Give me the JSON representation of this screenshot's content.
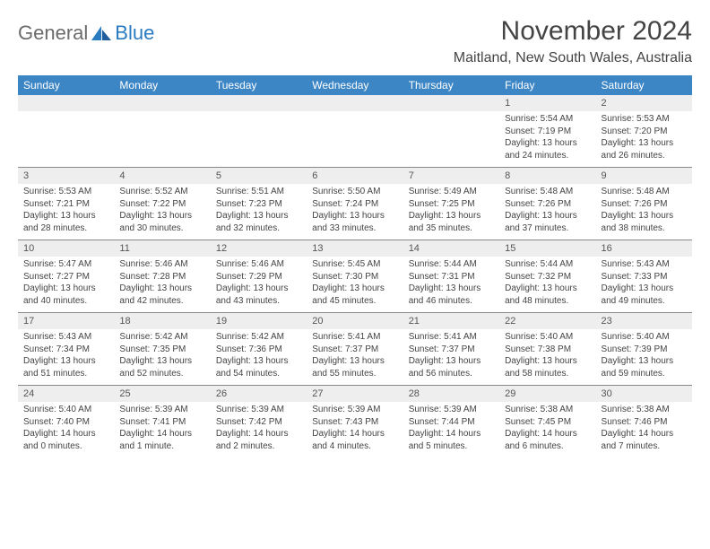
{
  "brand": {
    "text1": "General",
    "text2": "Blue"
  },
  "title": "November 2024",
  "location": "Maitland, New South Wales, Australia",
  "colors": {
    "header_bg": "#3d86c6",
    "header_text": "#ffffff",
    "daynum_bg": "#eeeeee",
    "text": "#444444",
    "logo_gray": "#6b6b6b",
    "logo_blue": "#2a7bbf",
    "rule": "#888888"
  },
  "dayNames": [
    "Sunday",
    "Monday",
    "Tuesday",
    "Wednesday",
    "Thursday",
    "Friday",
    "Saturday"
  ],
  "weeks": [
    {
      "nums": [
        "",
        "",
        "",
        "",
        "",
        "1",
        "2"
      ],
      "cells": [
        null,
        null,
        null,
        null,
        null,
        {
          "sr": "5:54 AM",
          "ss": "7:19 PM",
          "dl": "13 hours and 24 minutes."
        },
        {
          "sr": "5:53 AM",
          "ss": "7:20 PM",
          "dl": "13 hours and 26 minutes."
        }
      ]
    },
    {
      "nums": [
        "3",
        "4",
        "5",
        "6",
        "7",
        "8",
        "9"
      ],
      "cells": [
        {
          "sr": "5:53 AM",
          "ss": "7:21 PM",
          "dl": "13 hours and 28 minutes."
        },
        {
          "sr": "5:52 AM",
          "ss": "7:22 PM",
          "dl": "13 hours and 30 minutes."
        },
        {
          "sr": "5:51 AM",
          "ss": "7:23 PM",
          "dl": "13 hours and 32 minutes."
        },
        {
          "sr": "5:50 AM",
          "ss": "7:24 PM",
          "dl": "13 hours and 33 minutes."
        },
        {
          "sr": "5:49 AM",
          "ss": "7:25 PM",
          "dl": "13 hours and 35 minutes."
        },
        {
          "sr": "5:48 AM",
          "ss": "7:26 PM",
          "dl": "13 hours and 37 minutes."
        },
        {
          "sr": "5:48 AM",
          "ss": "7:26 PM",
          "dl": "13 hours and 38 minutes."
        }
      ]
    },
    {
      "nums": [
        "10",
        "11",
        "12",
        "13",
        "14",
        "15",
        "16"
      ],
      "cells": [
        {
          "sr": "5:47 AM",
          "ss": "7:27 PM",
          "dl": "13 hours and 40 minutes."
        },
        {
          "sr": "5:46 AM",
          "ss": "7:28 PM",
          "dl": "13 hours and 42 minutes."
        },
        {
          "sr": "5:46 AM",
          "ss": "7:29 PM",
          "dl": "13 hours and 43 minutes."
        },
        {
          "sr": "5:45 AM",
          "ss": "7:30 PM",
          "dl": "13 hours and 45 minutes."
        },
        {
          "sr": "5:44 AM",
          "ss": "7:31 PM",
          "dl": "13 hours and 46 minutes."
        },
        {
          "sr": "5:44 AM",
          "ss": "7:32 PM",
          "dl": "13 hours and 48 minutes."
        },
        {
          "sr": "5:43 AM",
          "ss": "7:33 PM",
          "dl": "13 hours and 49 minutes."
        }
      ]
    },
    {
      "nums": [
        "17",
        "18",
        "19",
        "20",
        "21",
        "22",
        "23"
      ],
      "cells": [
        {
          "sr": "5:43 AM",
          "ss": "7:34 PM",
          "dl": "13 hours and 51 minutes."
        },
        {
          "sr": "5:42 AM",
          "ss": "7:35 PM",
          "dl": "13 hours and 52 minutes."
        },
        {
          "sr": "5:42 AM",
          "ss": "7:36 PM",
          "dl": "13 hours and 54 minutes."
        },
        {
          "sr": "5:41 AM",
          "ss": "7:37 PM",
          "dl": "13 hours and 55 minutes."
        },
        {
          "sr": "5:41 AM",
          "ss": "7:37 PM",
          "dl": "13 hours and 56 minutes."
        },
        {
          "sr": "5:40 AM",
          "ss": "7:38 PM",
          "dl": "13 hours and 58 minutes."
        },
        {
          "sr": "5:40 AM",
          "ss": "7:39 PM",
          "dl": "13 hours and 59 minutes."
        }
      ]
    },
    {
      "nums": [
        "24",
        "25",
        "26",
        "27",
        "28",
        "29",
        "30"
      ],
      "cells": [
        {
          "sr": "5:40 AM",
          "ss": "7:40 PM",
          "dl": "14 hours and 0 minutes."
        },
        {
          "sr": "5:39 AM",
          "ss": "7:41 PM",
          "dl": "14 hours and 1 minute."
        },
        {
          "sr": "5:39 AM",
          "ss": "7:42 PM",
          "dl": "14 hours and 2 minutes."
        },
        {
          "sr": "5:39 AM",
          "ss": "7:43 PM",
          "dl": "14 hours and 4 minutes."
        },
        {
          "sr": "5:39 AM",
          "ss": "7:44 PM",
          "dl": "14 hours and 5 minutes."
        },
        {
          "sr": "5:38 AM",
          "ss": "7:45 PM",
          "dl": "14 hours and 6 minutes."
        },
        {
          "sr": "5:38 AM",
          "ss": "7:46 PM",
          "dl": "14 hours and 7 minutes."
        }
      ]
    }
  ],
  "labels": {
    "sunrise": "Sunrise:",
    "sunset": "Sunset:",
    "daylight": "Daylight:"
  }
}
